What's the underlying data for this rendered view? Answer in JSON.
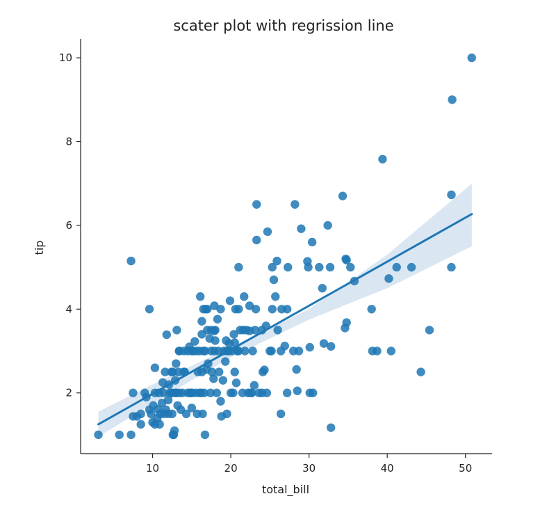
{
  "chart_data": {
    "type": "scatter",
    "title": "scater plot with regrission line",
    "xlabel": "total_bill",
    "ylabel": "tip",
    "xlim": [
      0.8,
      53.4
    ],
    "ylim": [
      0.55,
      10.45
    ],
    "x_ticks": [
      10,
      20,
      30,
      40,
      50
    ],
    "y_ticks": [
      2,
      4,
      6,
      8,
      10
    ],
    "grid": false,
    "legend": false,
    "point_color": "#1f77b4",
    "line_color": "#1f77b4",
    "band_color": "#bcd4ea",
    "regression": {
      "x": [
        3.07,
        50.81
      ],
      "y": [
        1.25,
        6.27
      ]
    },
    "confidence_band": {
      "x": [
        3.07,
        10,
        20,
        30,
        40,
        50.81
      ],
      "upper": [
        1.55,
        2.2,
        3.1,
        4.0,
        5.3,
        7.0
      ],
      "lower": [
        0.95,
        1.75,
        2.85,
        3.75,
        4.5,
        5.5
      ]
    },
    "points": [
      [
        3.07,
        1.0
      ],
      [
        5.75,
        1.0
      ],
      [
        7.25,
        1.0
      ],
      [
        12.6,
        1.0
      ],
      [
        16.7,
        1.0
      ],
      [
        12.8,
        1.1
      ],
      [
        32.8,
        1.17
      ],
      [
        26.4,
        1.5
      ],
      [
        7.25,
        5.15
      ],
      [
        9.6,
        4.0
      ],
      [
        7.5,
        2.0
      ],
      [
        7.5,
        1.44
      ],
      [
        8.0,
        1.44
      ],
      [
        8.5,
        1.5
      ],
      [
        8.5,
        1.25
      ],
      [
        9.0,
        2.0
      ],
      [
        9.2,
        1.9
      ],
      [
        9.6,
        1.6
      ],
      [
        9.8,
        1.5
      ],
      [
        10.0,
        1.3
      ],
      [
        10.1,
        1.7
      ],
      [
        10.3,
        1.25
      ],
      [
        10.3,
        2.0
      ],
      [
        10.3,
        2.6
      ],
      [
        10.6,
        1.4
      ],
      [
        10.7,
        1.61
      ],
      [
        10.8,
        2.0
      ],
      [
        10.9,
        1.25
      ],
      [
        11.0,
        1.5
      ],
      [
        11.2,
        1.76
      ],
      [
        11.4,
        2.0
      ],
      [
        11.5,
        1.5
      ],
      [
        11.6,
        2.5
      ],
      [
        11.7,
        1.6
      ],
      [
        11.8,
        3.39
      ],
      [
        12.0,
        1.83
      ],
      [
        12.0,
        1.5
      ],
      [
        12.1,
        2.2
      ],
      [
        12.2,
        2.0
      ],
      [
        12.4,
        2.5
      ],
      [
        12.5,
        2.0
      ],
      [
        12.5,
        1.5
      ],
      [
        12.6,
        2.5
      ],
      [
        12.7,
        1.0
      ],
      [
        12.9,
        2.3
      ],
      [
        13.0,
        2.0
      ],
      [
        13.0,
        2.0
      ],
      [
        13.0,
        2.7
      ],
      [
        13.1,
        3.5
      ],
      [
        13.2,
        1.7
      ],
      [
        13.3,
        2.5
      ],
      [
        13.4,
        2.0
      ],
      [
        13.4,
        3.0
      ],
      [
        13.6,
        1.6
      ],
      [
        13.8,
        2.0
      ],
      [
        14.0,
        3.0
      ],
      [
        14.1,
        2.5
      ],
      [
        14.3,
        1.5
      ],
      [
        14.5,
        2.0
      ],
      [
        14.5,
        3.0
      ],
      [
        14.7,
        3.1
      ],
      [
        14.8,
        2.0
      ],
      [
        15.0,
        1.64
      ],
      [
        15.0,
        2.0
      ],
      [
        15.0,
        3.0
      ],
      [
        15.2,
        3.0
      ],
      [
        15.4,
        3.23
      ],
      [
        15.5,
        2.0
      ],
      [
        15.6,
        3.0
      ],
      [
        15.7,
        1.5
      ],
      [
        15.8,
        2.5
      ],
      [
        16.0,
        2.0
      ],
      [
        16.0,
        3.0
      ],
      [
        16.1,
        4.3
      ],
      [
        16.2,
        2.0
      ],
      [
        16.3,
        2.5
      ],
      [
        16.3,
        3.71
      ],
      [
        16.4,
        1.5
      ],
      [
        16.5,
        3.0
      ],
      [
        16.5,
        4.0
      ],
      [
        16.6,
        2.0
      ],
      [
        16.7,
        3.0
      ],
      [
        16.8,
        4.0
      ],
      [
        16.9,
        2.56
      ],
      [
        17.0,
        3.5
      ],
      [
        17.1,
        2.7
      ],
      [
        17.3,
        3.3
      ],
      [
        17.4,
        2.0
      ],
      [
        17.5,
        3.0
      ],
      [
        17.5,
        3.5
      ],
      [
        17.6,
        2.5
      ],
      [
        17.8,
        2.34
      ],
      [
        17.9,
        3.0
      ],
      [
        17.9,
        4.08
      ],
      [
        18.0,
        3.5
      ],
      [
        18.2,
        2.0
      ],
      [
        18.3,
        3.76
      ],
      [
        18.4,
        3.0
      ],
      [
        18.5,
        2.5
      ],
      [
        18.7,
        1.8
      ],
      [
        18.7,
        4.0
      ],
      [
        18.8,
        1.44
      ],
      [
        19.0,
        2.3
      ],
      [
        19.1,
        3.0
      ],
      [
        19.4,
        3.25
      ],
      [
        19.5,
        1.5
      ],
      [
        19.5,
        3.0
      ],
      [
        19.7,
        3.0
      ],
      [
        19.8,
        3.18
      ],
      [
        19.9,
        4.2
      ],
      [
        20.0,
        2.0
      ],
      [
        20.1,
        3.0
      ],
      [
        20.3,
        2.0
      ],
      [
        20.4,
        3.4
      ],
      [
        20.5,
        2.5
      ],
      [
        20.6,
        4.0
      ],
      [
        20.7,
        2.24
      ],
      [
        20.8,
        3.0
      ],
      [
        21.0,
        3.0
      ],
      [
        21.0,
        4.0
      ],
      [
        21.0,
        5.0
      ],
      [
        21.2,
        3.5
      ],
      [
        21.5,
        2.0
      ],
      [
        21.6,
        3.5
      ],
      [
        21.7,
        4.3
      ],
      [
        21.8,
        3.0
      ],
      [
        22.0,
        3.5
      ],
      [
        22.2,
        2.0
      ],
      [
        22.4,
        3.48
      ],
      [
        22.5,
        2.0
      ],
      [
        22.7,
        2.0
      ],
      [
        22.8,
        3.0
      ],
      [
        23.0,
        2.18
      ],
      [
        23.1,
        3.5
      ],
      [
        23.2,
        4.0
      ],
      [
        23.3,
        6.5
      ],
      [
        23.3,
        5.65
      ],
      [
        23.6,
        2.0
      ],
      [
        24.0,
        3.5
      ],
      [
        24.0,
        2.0
      ],
      [
        24.1,
        2.5
      ],
      [
        24.3,
        2.55
      ],
      [
        24.5,
        3.6
      ],
      [
        24.6,
        2.0
      ],
      [
        24.7,
        5.85
      ],
      [
        25.0,
        3.0
      ],
      [
        25.2,
        3.0
      ],
      [
        25.3,
        4.0
      ],
      [
        25.3,
        5.0
      ],
      [
        25.5,
        4.7
      ],
      [
        25.7,
        4.3
      ],
      [
        25.9,
        5.15
      ],
      [
        26.0,
        3.5
      ],
      [
        26.4,
        3.0
      ],
      [
        26.5,
        4.0
      ],
      [
        26.9,
        3.12
      ],
      [
        27.2,
        4.0
      ],
      [
        27.2,
        2.0
      ],
      [
        27.3,
        5.0
      ],
      [
        28.0,
        3.0
      ],
      [
        28.2,
        6.5
      ],
      [
        28.4,
        2.56
      ],
      [
        28.5,
        2.05
      ],
      [
        28.7,
        3.0
      ],
      [
        29.0,
        5.92
      ],
      [
        29.8,
        5.14
      ],
      [
        29.9,
        5.0
      ],
      [
        30.1,
        3.09
      ],
      [
        30.1,
        2.0
      ],
      [
        30.4,
        5.6
      ],
      [
        30.5,
        2.0
      ],
      [
        31.3,
        5.0
      ],
      [
        31.7,
        4.5
      ],
      [
        31.9,
        3.18
      ],
      [
        32.4,
        6.0
      ],
      [
        32.7,
        5.0
      ],
      [
        32.8,
        3.11
      ],
      [
        34.3,
        6.7
      ],
      [
        34.6,
        3.55
      ],
      [
        34.7,
        5.2
      ],
      [
        34.8,
        5.17
      ],
      [
        34.8,
        3.68
      ],
      [
        35.3,
        5.0
      ],
      [
        35.8,
        4.67
      ],
      [
        38.0,
        4.0
      ],
      [
        38.1,
        3.0
      ],
      [
        38.7,
        3.0
      ],
      [
        39.4,
        7.58
      ],
      [
        40.2,
        4.73
      ],
      [
        40.5,
        3.0
      ],
      [
        41.2,
        5.0
      ],
      [
        43.1,
        5.0
      ],
      [
        44.3,
        2.5
      ],
      [
        45.4,
        3.5
      ],
      [
        48.2,
        5.0
      ],
      [
        48.2,
        6.73
      ],
      [
        48.3,
        9.0
      ],
      [
        50.8,
        10.0
      ],
      [
        16.3,
        3.4
      ],
      [
        14.0,
        2.5
      ],
      [
        19.3,
        2.75
      ],
      [
        17.9,
        3.48
      ],
      [
        22.4,
        4.08
      ],
      [
        11.3,
        2.25
      ],
      [
        13.4,
        3.0
      ],
      [
        17.0,
        4.0
      ],
      [
        18.0,
        3.25
      ],
      [
        20.5,
        3.2
      ],
      [
        15.0,
        2.0
      ],
      [
        12.5,
        2.0
      ]
    ]
  }
}
